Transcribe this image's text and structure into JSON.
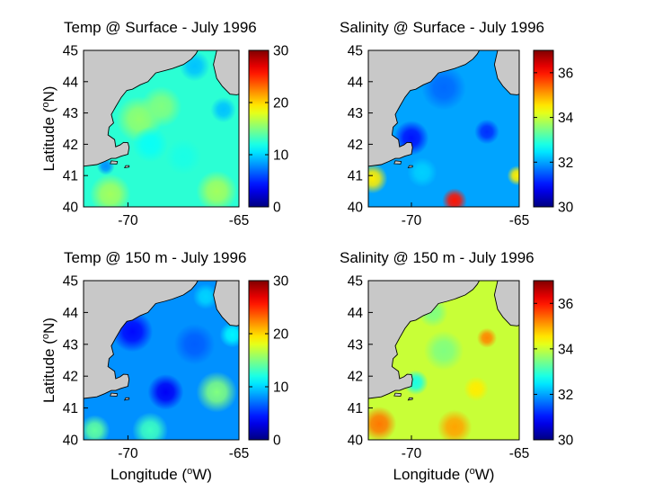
{
  "figure": {
    "xlabel": "Longitude (°W)",
    "ylabel": "Latitude (°N)"
  },
  "chart_data": [
    {
      "type": "heatmap",
      "title": "Temp @ Surface - July 1996",
      "xlabel": "",
      "ylabel": "Latitude (°N)",
      "xlim": [
        -72,
        -65
      ],
      "ylim": [
        40,
        45
      ],
      "xticks": [
        "-70",
        "-65"
      ],
      "yticks": [
        "40",
        "41",
        "42",
        "43",
        "44",
        "45"
      ],
      "colorbar": {
        "min": 0,
        "max": 30,
        "ticks": [
          "0",
          "10",
          "20",
          "30"
        ]
      },
      "blobs": [
        {
          "x": -69.5,
          "y": 42.8,
          "value": 15.5,
          "r": 0.9
        },
        {
          "x": -68.5,
          "y": 43.2,
          "value": 15.0,
          "r": 0.8
        },
        {
          "x": -69.0,
          "y": 42.0,
          "value": 11.5,
          "r": 0.7
        },
        {
          "x": -71.0,
          "y": 41.3,
          "value": 8.0,
          "r": 0.35
        },
        {
          "x": -70.8,
          "y": 40.4,
          "value": 16.0,
          "r": 0.8
        },
        {
          "x": -66.0,
          "y": 40.5,
          "value": 16.0,
          "r": 0.8
        },
        {
          "x": -65.7,
          "y": 43.1,
          "value": 9.5,
          "r": 0.5
        },
        {
          "x": -65.5,
          "y": 44.8,
          "value": 4.0,
          "r": 0.5
        },
        {
          "x": -67.0,
          "y": 44.5,
          "value": 9.5,
          "r": 0.6
        },
        {
          "x": -67.5,
          "y": 41.6,
          "value": 12.0,
          "r": 0.7
        }
      ],
      "background_value": 12.5
    },
    {
      "type": "heatmap",
      "title": "Salinity @ Surface - July 1996",
      "xlabel": "",
      "ylabel": "",
      "xlim": [
        -72,
        -65
      ],
      "ylim": [
        40,
        45
      ],
      "xticks": [
        "-70",
        "-65"
      ],
      "yticks": [
        "40",
        "41",
        "42",
        "43",
        "44",
        "45"
      ],
      "colorbar": {
        "min": 30,
        "max": 37,
        "ticks": [
          "30",
          "32",
          "34",
          "36"
        ]
      },
      "blobs": [
        {
          "x": -70.0,
          "y": 42.2,
          "value": 31.0,
          "r": 0.7
        },
        {
          "x": -66.5,
          "y": 42.4,
          "value": 31.2,
          "r": 0.5
        },
        {
          "x": -68.5,
          "y": 43.8,
          "value": 31.6,
          "r": 0.9
        },
        {
          "x": -71.8,
          "y": 40.9,
          "value": 34.5,
          "r": 0.6
        },
        {
          "x": -68.0,
          "y": 40.2,
          "value": 36.0,
          "r": 0.5
        },
        {
          "x": -65.1,
          "y": 41.0,
          "value": 34.5,
          "r": 0.4
        },
        {
          "x": -65.5,
          "y": 44.8,
          "value": 33.8,
          "r": 0.4
        },
        {
          "x": -69.5,
          "y": 41.1,
          "value": 32.3,
          "r": 0.6
        }
      ],
      "background_value": 32.0
    },
    {
      "type": "heatmap",
      "title": "Temp @ 150 m - July 1996",
      "xlabel": "Longitude (°W)",
      "ylabel": "Latitude (°N)",
      "xlim": [
        -72,
        -65
      ],
      "ylim": [
        40,
        45
      ],
      "xticks": [
        "-70",
        "-65"
      ],
      "yticks": [
        "40",
        "41",
        "42",
        "43",
        "44",
        "45"
      ],
      "colorbar": {
        "min": 0,
        "max": 30,
        "ticks": [
          "0",
          "10",
          "20",
          "30"
        ]
      },
      "blobs": [
        {
          "x": -69.8,
          "y": 43.4,
          "value": 4.0,
          "r": 0.8
        },
        {
          "x": -68.3,
          "y": 41.5,
          "value": 3.5,
          "r": 0.7
        },
        {
          "x": -67.0,
          "y": 43.0,
          "value": 6.5,
          "r": 0.8
        },
        {
          "x": -66.0,
          "y": 41.5,
          "value": 15.0,
          "r": 0.8
        },
        {
          "x": -71.5,
          "y": 40.3,
          "value": 14.0,
          "r": 0.6
        },
        {
          "x": -69.0,
          "y": 40.3,
          "value": 13.0,
          "r": 0.7
        },
        {
          "x": -65.3,
          "y": 43.3,
          "value": 11.0,
          "r": 0.5
        },
        {
          "x": -66.5,
          "y": 44.5,
          "value": 10.0,
          "r": 0.5
        }
      ],
      "background_value": 8.0
    },
    {
      "type": "heatmap",
      "title": "Salinity @ 150 m - July 1996",
      "xlabel": "Longitude (°W)",
      "ylabel": "",
      "xlim": [
        -72,
        -65
      ],
      "ylim": [
        40,
        45
      ],
      "xticks": [
        "-70",
        "-65"
      ],
      "yticks": [
        "40",
        "41",
        "42",
        "43",
        "44",
        "45"
      ],
      "colorbar": {
        "min": 30,
        "max": 37,
        "ticks": [
          "30",
          "32",
          "34",
          "36"
        ]
      },
      "blobs": [
        {
          "x": -71.5,
          "y": 40.5,
          "value": 35.3,
          "r": 0.7
        },
        {
          "x": -68.0,
          "y": 40.4,
          "value": 35.0,
          "r": 0.7
        },
        {
          "x": -66.5,
          "y": 43.2,
          "value": 35.2,
          "r": 0.4
        },
        {
          "x": -69.8,
          "y": 41.8,
          "value": 32.8,
          "r": 0.5
        },
        {
          "x": -68.5,
          "y": 42.8,
          "value": 33.5,
          "r": 0.8
        },
        {
          "x": -67.0,
          "y": 41.6,
          "value": 34.5,
          "r": 0.5
        },
        {
          "x": -69.0,
          "y": 44.0,
          "value": 33.5,
          "r": 0.6
        },
        {
          "x": -65.5,
          "y": 44.7,
          "value": 35.5,
          "r": 0.4
        }
      ],
      "background_value": 34.0
    }
  ]
}
